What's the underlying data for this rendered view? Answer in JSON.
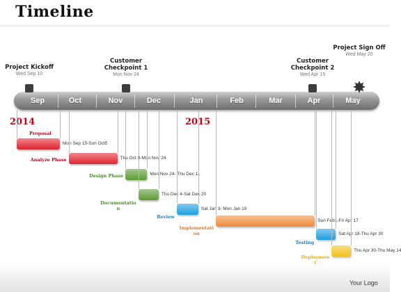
{
  "title": "Timeline",
  "milestones": [
    {
      "title_lines": [
        "Project Kickoff"
      ],
      "date": "Wed Sep 10"
    },
    {
      "title_lines": [
        "Customer",
        "Checkpoint 1"
      ],
      "date": "Mon Nov 24"
    },
    {
      "title_lines": [
        "Customer",
        "Checkpoint 2"
      ],
      "date": "Wed Apr 15"
    },
    {
      "title_lines": [
        "Project Sign Off"
      ],
      "date": "Wed May 20"
    }
  ],
  "months": [
    "Sep",
    "Oct",
    "Nov",
    "Dec",
    "Jan",
    "Feb",
    "Mar",
    "Apr",
    "May"
  ],
  "years": [
    "2014",
    "2015"
  ],
  "tasks": [
    {
      "label_lines": [
        "Proposal"
      ],
      "dates": "Mon Sep 15-Sun Oct5",
      "color": "#e2232f",
      "label_color": "#c0001a",
      "start": "2014-09-15",
      "end": "2014-10-05"
    },
    {
      "label_lines": [
        "Analyze Phase"
      ],
      "dates": "Thu Oct 9-Mon Nov 24",
      "color": "#e2232f",
      "label_color": "#c0001a",
      "start": "2014-10-09",
      "end": "2014-11-24"
    },
    {
      "label_lines": [
        "Design Phase"
      ],
      "dates": "Mon Nov 24- Thu Dec 11",
      "color": "#5c9a33",
      "label_color": "#4a8a2a",
      "start": "2014-11-24",
      "end": "2014-12-11"
    },
    {
      "label_lines": [
        "Documentatio",
        "n"
      ],
      "dates": "Thu Dec 4-Sat Dec 20",
      "color": "#5c9a33",
      "label_color": "#4a8a2a",
      "start": "2014-12-04",
      "end": "2014-12-20"
    },
    {
      "label_lines": [
        "Review"
      ],
      "dates": "Sat Jan 3- Mon Jan 19",
      "color": "#1e9fe0",
      "label_color": "#1e78c0",
      "start": "2015-01-03",
      "end": "2015-01-19"
    },
    {
      "label_lines": [
        "Implementati",
        "on"
      ],
      "dates": "Sun Feb1-Fri Apr 17",
      "color": "#f08a3c",
      "label_color": "#e07a2c",
      "start": "2015-02-01",
      "end": "2015-04-17"
    },
    {
      "label_lines": [
        "Testing"
      ],
      "dates": "Sat Apr 18-Thu Apr 30",
      "color": "#1e9fe0",
      "label_color": "#1e78c0",
      "start": "2015-04-18",
      "end": "2015-04-30"
    },
    {
      "label_lines": [
        "Deploymen",
        "t"
      ],
      "dates": "Thu Apr 30-Thu May 14",
      "color": "#f2c21e",
      "label_color": "#e0b010",
      "start": "2015-04-30",
      "end": "2015-05-14"
    }
  ],
  "footer": {
    "logo": "Your Logo"
  }
}
